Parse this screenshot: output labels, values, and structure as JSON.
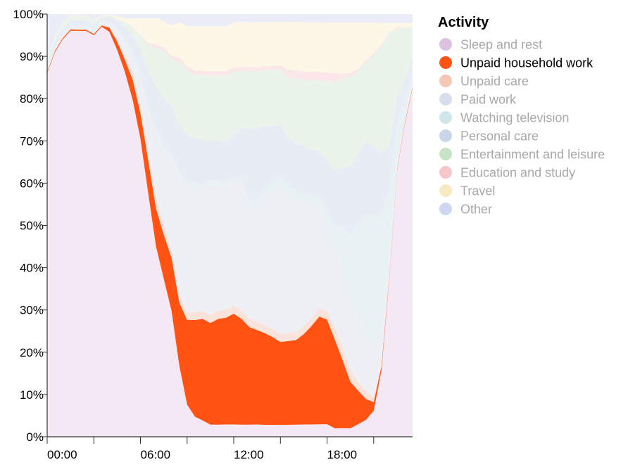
{
  "chart_data": {
    "type": "area",
    "stacked": "normalize",
    "highlighted_series": "Unpaid household work",
    "x_ticks": [
      "00:00",
      "06:00",
      "12:00",
      "18:00"
    ],
    "y_ticks": [
      "0%",
      "10%",
      "20%",
      "30%",
      "40%",
      "50%",
      "60%",
      "70%",
      "80%",
      "90%",
      "100%"
    ],
    "xlim": [
      "00:00",
      "23:30"
    ],
    "ylim": [
      0,
      100
    ],
    "legend": {
      "title": "Activity",
      "placement": "right"
    },
    "grid": false,
    "x": [
      "00:00",
      "00:30",
      "01:00",
      "01:30",
      "02:00",
      "02:30",
      "03:00",
      "03:30",
      "04:00",
      "04:30",
      "05:00",
      "05:30",
      "06:00",
      "06:30",
      "07:00",
      "07:30",
      "08:00",
      "08:30",
      "09:00",
      "09:30",
      "10:00",
      "10:30",
      "11:00",
      "11:30",
      "12:00",
      "12:30",
      "13:00",
      "13:30",
      "14:00",
      "14:30",
      "15:00",
      "15:30",
      "16:00",
      "16:30",
      "17:00",
      "17:30",
      "18:00",
      "18:30",
      "19:00",
      "19:30",
      "20:00",
      "20:30",
      "21:00",
      "21:30",
      "22:00",
      "22:30",
      "23:00",
      "23:30"
    ],
    "series": [
      {
        "name": "Sleep and rest",
        "color": "#f3e8f3",
        "values": [
          86,
          90,
          93,
          95,
          96,
          96,
          95,
          97,
          96,
          93,
          89,
          83,
          70,
          59,
          50,
          43,
          33,
          18,
          8,
          5,
          4,
          3,
          3,
          3,
          3,
          3,
          3,
          3,
          3,
          3,
          3,
          3,
          3,
          3,
          3,
          3,
          3,
          2,
          2,
          2,
          3,
          4,
          6,
          15,
          35,
          60,
          70,
          82
        ]
      },
      {
        "name": "Unpaid household work",
        "color": "#ff5213",
        "values": [
          0.3,
          0.3,
          0.3,
          0.3,
          0.3,
          0.3,
          0.3,
          0.3,
          1,
          2,
          3,
          5,
          6,
          8,
          10,
          12,
          14,
          16,
          21,
          24,
          25,
          25,
          26,
          26,
          27,
          26,
          24,
          23,
          23,
          22,
          21,
          21,
          21,
          22,
          24,
          26,
          25,
          21,
          16,
          11,
          8,
          5,
          2,
          1,
          0.5,
          0.3,
          0.3,
          0.3
        ]
      },
      {
        "name": "Unpaid care",
        "color": "#f9e3da",
        "values": [
          0.1,
          0.1,
          0.1,
          0.1,
          0.1,
          0.1,
          0.1,
          0.1,
          0.3,
          0.5,
          1,
          2,
          2,
          2,
          3,
          3,
          2,
          2,
          2,
          2,
          2,
          2,
          2,
          2,
          2,
          2,
          2,
          2,
          2,
          2,
          2,
          2,
          2,
          2,
          2,
          2,
          2,
          3,
          3,
          3,
          2,
          2,
          1,
          0.3,
          0.2,
          0.1,
          0.1,
          0.1
        ]
      },
      {
        "name": "Paid work",
        "color": "#eef0f6",
        "values": [
          0.3,
          0.3,
          0.3,
          0.3,
          0.3,
          0.3,
          0.3,
          0.3,
          1,
          2,
          3,
          4,
          6,
          10,
          17,
          20,
          24,
          30,
          31,
          31,
          30,
          32,
          31,
          30,
          30,
          32,
          27,
          28,
          33,
          35,
          38,
          35,
          33,
          30,
          28,
          25,
          20,
          18,
          18,
          17,
          16,
          14,
          12,
          8,
          4,
          2,
          1,
          1
        ]
      },
      {
        "name": "Watching television",
        "color": "#e8f2f4",
        "values": [
          0.8,
          0.8,
          0.8,
          0.8,
          0.8,
          0.8,
          0.8,
          0.8,
          0.3,
          0.5,
          1,
          1,
          1,
          1,
          1,
          1,
          1,
          1,
          1,
          1,
          1,
          1,
          1,
          1,
          1,
          1,
          2,
          2,
          2,
          2,
          2,
          2,
          2,
          2,
          2,
          2,
          4,
          6,
          10,
          15,
          22,
          28,
          30,
          26,
          15,
          8,
          4,
          2
        ]
      },
      {
        "name": "Personal care",
        "color": "#e8edf5",
        "values": [
          1,
          1,
          1,
          1,
          1,
          1,
          1,
          0.5,
          1,
          2,
          3,
          4,
          6,
          9,
          11,
          13,
          13,
          12,
          12,
          11,
          11,
          10,
          10,
          10,
          11,
          12,
          18,
          17,
          15,
          14,
          13,
          12,
          12,
          12,
          11,
          11,
          12,
          13,
          14,
          16,
          16,
          17,
          16,
          14,
          10,
          6,
          5,
          4
        ]
      },
      {
        "name": "Entertainment and leisure",
        "color": "#eaf4ea",
        "values": [
          1,
          1,
          1,
          1,
          1,
          1,
          1,
          0.5,
          0.3,
          0.5,
          1,
          2,
          3,
          6,
          10,
          13,
          12,
          16,
          16,
          16,
          16,
          16,
          16,
          16,
          15,
          14,
          14,
          14,
          14,
          14,
          14,
          15,
          16,
          16,
          17,
          17,
          19,
          21,
          21,
          21,
          20,
          19,
          21,
          24,
          25,
          16,
          11,
          7
        ]
      },
      {
        "name": "Education and study",
        "color": "#fbe6ea",
        "values": [
          0.1,
          0.1,
          0.1,
          0.1,
          0.1,
          0.1,
          0.1,
          0.1,
          0.1,
          0.1,
          0.1,
          0.2,
          0.3,
          0.5,
          1,
          1,
          1,
          1,
          1,
          1,
          1,
          1,
          1,
          1,
          1,
          1,
          1,
          1,
          1,
          1,
          1,
          2,
          2,
          2,
          2,
          2,
          2,
          2,
          1,
          1,
          0.5,
          0.5,
          0.5,
          0.5,
          0.2,
          0.2,
          0.1,
          0.1
        ]
      },
      {
        "name": "Travel",
        "color": "#fcf7e6",
        "values": [
          0.1,
          0.1,
          0.1,
          0.1,
          0.1,
          0.1,
          0.1,
          0.1,
          0.1,
          0.5,
          1,
          2,
          4,
          6,
          7,
          7,
          8,
          9,
          10,
          11,
          11,
          11,
          11,
          11,
          11,
          11,
          11,
          11,
          11,
          11,
          11,
          12,
          12,
          12,
          12,
          12,
          12,
          12,
          12,
          12,
          11,
          9,
          7,
          5,
          2,
          1,
          1,
          1
        ]
      },
      {
        "name": "Other",
        "color": "#eaedf8",
        "values": [
          10.2,
          5.2,
          2.2,
          0.2,
          0.3,
          0.3,
          1.3,
          0.3,
          0.1,
          0.5,
          1,
          1,
          1,
          1,
          1,
          2,
          3,
          2,
          3,
          3,
          3,
          3,
          3,
          3,
          2,
          2,
          2,
          2,
          2,
          2,
          2,
          2,
          2,
          2,
          2,
          2,
          2,
          2,
          2,
          2,
          2,
          2,
          2,
          2,
          2,
          2,
          2,
          2
        ]
      }
    ]
  }
}
